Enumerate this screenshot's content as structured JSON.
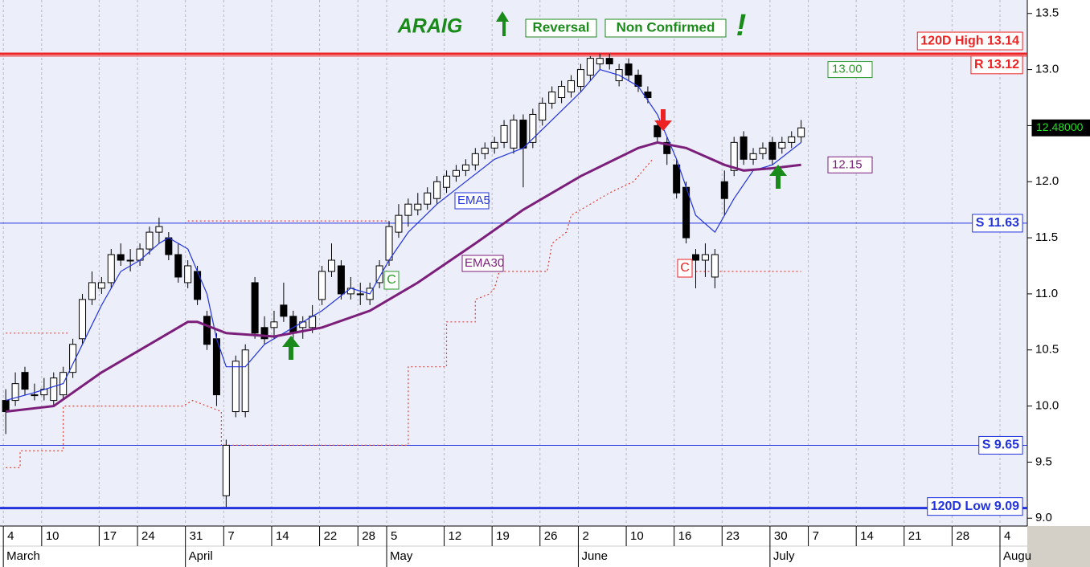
{
  "chart_data": {
    "type": "candlestick",
    "title": "ARAIG",
    "signals": [
      "Reversal",
      "Non Confirmed",
      "!"
    ],
    "xlim": [
      -0.6,
      106.6
    ],
    "ylim": [
      8.93,
      13.62
    ],
    "yticks": [
      {
        "value": 9,
        "label": "9.0"
      },
      9.5,
      {
        "value": 10,
        "label": "10.0"
      },
      10.5,
      {
        "value": 11,
        "label": "11.0"
      },
      11.5,
      {
        "value": 12,
        "label": "12.0"
      },
      12.5,
      {
        "value": 13,
        "label": "13.0"
      },
      13.5
    ],
    "xticks": [
      {
        "value": 0,
        "label": "4"
      },
      {
        "value": 4,
        "label": "10"
      },
      {
        "value": 10,
        "label": "17"
      },
      {
        "value": 14,
        "label": "24"
      },
      {
        "value": 19,
        "label": "31"
      },
      {
        "value": 23,
        "label": "7"
      },
      {
        "value": 28,
        "label": "14"
      },
      {
        "value": 33,
        "label": "22"
      },
      {
        "value": 37,
        "label": "28"
      },
      {
        "value": 40,
        "label": "5"
      },
      {
        "value": 46,
        "label": "12"
      },
      {
        "value": 51,
        "label": "19"
      },
      {
        "value": 56,
        "label": "26"
      },
      {
        "value": 60,
        "label": "2"
      },
      {
        "value": 65,
        "label": "10"
      },
      {
        "value": 70,
        "label": "16"
      },
      {
        "value": 75,
        "label": "23"
      },
      {
        "value": 80,
        "label": "30"
      },
      {
        "value": 84,
        "label": "7"
      },
      {
        "value": 89,
        "label": "14"
      },
      {
        "value": 94,
        "label": "21"
      },
      {
        "value": 99,
        "label": "28"
      },
      {
        "value": 104,
        "label": "4"
      }
    ],
    "months": [
      {
        "value": 0,
        "label": "March"
      },
      {
        "value": 19,
        "label": "April"
      },
      {
        "value": 40,
        "label": "May"
      },
      {
        "value": 60,
        "label": "June"
      },
      {
        "value": 80,
        "label": "July"
      },
      {
        "value": 104,
        "label": "Augu"
      }
    ],
    "grid": true,
    "x": [
      0,
      1,
      2,
      3,
      4,
      5,
      6,
      7,
      8,
      9,
      10,
      11,
      12,
      13,
      14,
      15,
      16,
      17,
      18,
      19,
      20,
      21,
      22,
      23,
      24,
      25,
      26,
      27,
      28,
      29,
      30,
      31,
      32,
      33,
      34,
      35,
      36,
      37,
      38,
      39,
      40,
      41,
      42,
      43,
      44,
      45,
      46,
      47,
      48,
      49,
      50,
      51,
      52,
      53,
      54,
      55,
      56,
      57,
      58,
      59,
      60,
      61,
      62,
      63,
      64,
      65,
      66,
      67,
      68,
      69,
      70,
      71,
      72,
      73,
      74,
      75,
      76,
      77,
      78,
      79,
      80,
      81,
      82,
      83
    ],
    "open": [
      10.05,
      10.05,
      10.3,
      10.1,
      10.1,
      10.05,
      10.1,
      10.3,
      10.6,
      10.95,
      11.05,
      11.1,
      11.35,
      11.3,
      11.3,
      11.4,
      11.55,
      11.5,
      11.35,
      11.1,
      11.2,
      10.8,
      10.6,
      9.2,
      9.95,
      9.95,
      11.1,
      10.7,
      10.7,
      10.9,
      10.8,
      10.7,
      10.7,
      10.95,
      11.2,
      11.25,
      11.0,
      11.0,
      10.95,
      11.1,
      11.3,
      11.55,
      11.7,
      11.75,
      11.8,
      11.85,
      11.95,
      12.05,
      12.1,
      12.15,
      12.25,
      12.3,
      12.35,
      12.3,
      12.55,
      12.35,
      12.55,
      12.7,
      12.75,
      12.8,
      12.85,
      12.95,
      13.05,
      13.1,
      12.9,
      13.05,
      12.95,
      12.8,
      12.5,
      12.35,
      12.15,
      11.95,
      11.35,
      11.3,
      11.15,
      12.0,
      12.1,
      12.4,
      12.2,
      12.25,
      12.35,
      12.3,
      12.35,
      12.4
    ],
    "high": [
      10.15,
      10.3,
      10.35,
      10.2,
      10.25,
      10.3,
      10.35,
      10.6,
      11.0,
      11.2,
      11.15,
      11.4,
      11.45,
      11.4,
      11.45,
      11.6,
      11.68,
      11.55,
      11.45,
      11.3,
      11.25,
      10.85,
      10.65,
      9.7,
      10.45,
      10.55,
      11.15,
      10.8,
      10.85,
      11.1,
      10.85,
      10.8,
      10.9,
      11.25,
      11.45,
      11.3,
      11.15,
      11.1,
      11.1,
      11.3,
      11.65,
      11.8,
      11.85,
      11.9,
      11.95,
      12.05,
      12.1,
      12.15,
      12.2,
      12.3,
      12.35,
      12.4,
      12.55,
      12.6,
      12.6,
      12.65,
      12.75,
      12.85,
      12.9,
      12.95,
      13.05,
      13.12,
      13.14,
      13.14,
      13.05,
      13.1,
      13.0,
      12.85,
      12.55,
      12.4,
      12.2,
      12.0,
      11.4,
      11.45,
      11.4,
      12.1,
      12.4,
      12.45,
      12.3,
      12.35,
      12.4,
      12.4,
      12.45,
      12.55
    ],
    "low": [
      9.75,
      10.0,
      10.1,
      10.05,
      10.05,
      10.0,
      10.05,
      10.25,
      10.55,
      10.9,
      11.0,
      11.05,
      11.25,
      11.2,
      11.25,
      11.35,
      11.45,
      11.3,
      11.1,
      11.05,
      10.9,
      10.5,
      10.0,
      9.1,
      9.9,
      9.9,
      10.6,
      10.55,
      10.6,
      10.75,
      10.6,
      10.6,
      10.65,
      10.9,
      11.15,
      10.95,
      10.95,
      10.9,
      10.9,
      11.05,
      11.25,
      11.5,
      11.6,
      11.7,
      11.75,
      11.8,
      11.9,
      12.0,
      12.05,
      12.1,
      12.2,
      12.25,
      12.3,
      12.25,
      11.95,
      12.3,
      12.5,
      12.65,
      12.7,
      12.75,
      12.8,
      12.9,
      13.0,
      13.0,
      12.85,
      12.9,
      12.8,
      12.7,
      12.35,
      12.15,
      11.85,
      11.45,
      11.05,
      11.15,
      11.05,
      11.7,
      12.05,
      12.15,
      12.15,
      12.2,
      12.15,
      12.25,
      12.3,
      12.35
    ],
    "close": [
      9.95,
      10.2,
      10.15,
      10.1,
      10.15,
      10.25,
      10.3,
      10.55,
      10.95,
      11.1,
      11.1,
      11.35,
      11.3,
      11.3,
      11.4,
      11.55,
      11.6,
      11.35,
      11.15,
      11.25,
      10.95,
      10.55,
      10.1,
      9.65,
      10.4,
      10.5,
      10.65,
      10.6,
      10.75,
      10.8,
      10.65,
      10.75,
      10.8,
      11.2,
      11.3,
      11.0,
      11.05,
      11.0,
      11.05,
      11.25,
      11.6,
      11.7,
      11.8,
      11.8,
      11.9,
      12.0,
      12.05,
      12.1,
      12.15,
      12.25,
      12.3,
      12.35,
      12.5,
      12.55,
      12.3,
      12.6,
      12.7,
      12.8,
      12.85,
      12.9,
      13.0,
      13.1,
      13.1,
      13.05,
      13.0,
      12.95,
      12.85,
      12.75,
      12.4,
      12.25,
      11.9,
      11.5,
      11.3,
      11.35,
      11.35,
      11.85,
      12.35,
      12.2,
      12.25,
      12.3,
      12.2,
      12.35,
      12.4,
      12.48
    ],
    "series": [
      {
        "name": "EMA5",
        "color": "#2233dd",
        "x": [
          0,
          3,
          6,
          8,
          10,
          12,
          14,
          16,
          17,
          19,
          21,
          22,
          23,
          25,
          27,
          30,
          33,
          36,
          38,
          40,
          42,
          45,
          48,
          51,
          54,
          57,
          60,
          62,
          64,
          66,
          68,
          70,
          72,
          74,
          76,
          78,
          80,
          83
        ],
        "values": [
          10.05,
          10.12,
          10.2,
          10.55,
          10.9,
          11.2,
          11.3,
          11.45,
          11.5,
          11.4,
          11.0,
          10.6,
          10.35,
          10.35,
          10.55,
          10.7,
          10.85,
          11.05,
          11.0,
          11.3,
          11.55,
          11.8,
          12.0,
          12.2,
          12.3,
          12.55,
          12.8,
          13.0,
          12.95,
          12.85,
          12.6,
          12.2,
          11.7,
          11.55,
          11.85,
          12.1,
          12.15,
          12.35
        ]
      },
      {
        "name": "EMA30",
        "color": "#7b1f7b",
        "x": [
          0,
          5,
          10,
          16,
          19,
          20,
          23,
          28,
          33,
          38,
          43,
          49,
          54,
          60,
          66,
          68,
          71,
          75,
          77,
          80,
          83
        ],
        "values": [
          9.95,
          10.0,
          10.3,
          10.6,
          10.75,
          10.75,
          10.65,
          10.62,
          10.7,
          10.85,
          11.1,
          11.45,
          11.75,
          12.05,
          12.3,
          12.35,
          12.3,
          12.15,
          12.1,
          12.12,
          12.15
        ]
      },
      {
        "color": "#e8403a",
        "x": [
          0,
          1.5,
          1.5,
          6,
          6,
          18.5,
          19.5,
          22.5,
          22.5,
          41.5,
          42,
          42,
          46,
          46,
          49,
          49,
          50.5,
          51,
          51.5,
          56.5,
          57,
          58.5,
          59,
          62,
          63,
          65.5,
          66.5,
          67.5,
          68,
          72,
          83
        ],
        "values": [
          9.45,
          9.45,
          9.6,
          9.6,
          10.0,
          10.0,
          10.05,
          9.95,
          9.65,
          9.65,
          9.65,
          10.35,
          10.35,
          10.75,
          10.75,
          10.95,
          11.0,
          11.05,
          11.2,
          11.2,
          11.45,
          11.55,
          11.7,
          11.85,
          11.9,
          12.0,
          12.1,
          12.2,
          null,
          11.2,
          11.2
        ]
      },
      {
        "color": "#e8403a",
        "x": [
          0,
          6.5,
          7,
          19,
          40
        ],
        "values": [
          10.65,
          10.65,
          null,
          11.65,
          11.65
        ]
      }
    ],
    "levels": [
      {
        "value": 13.14,
        "label": "120D High 13.14",
        "color": "#ee2222"
      },
      {
        "value": 13.12,
        "label": "R 13.12",
        "color": "#ee2222"
      },
      {
        "value": 11.63,
        "label": "S 11.63",
        "color": "#2233dd"
      },
      {
        "value": 9.65,
        "label": "S 9.65",
        "color": "#2233dd"
      },
      {
        "value": 9.09,
        "label": "120D Low 9.09",
        "color": "#2233dd"
      }
    ],
    "price_labels": [
      {
        "value": 13.0,
        "label": "13.00",
        "color": "#2a9a2a"
      },
      {
        "value": 12.15,
        "label": "12.15",
        "color": "#7b1f7b"
      },
      {
        "value": 12.48,
        "label": "12.48000",
        "color": "#22dd22"
      }
    ],
    "markers": [
      {
        "label": "C",
        "color": "#2a9a2a"
      },
      {
        "label": "C",
        "color": "#ee2222"
      }
    ]
  }
}
